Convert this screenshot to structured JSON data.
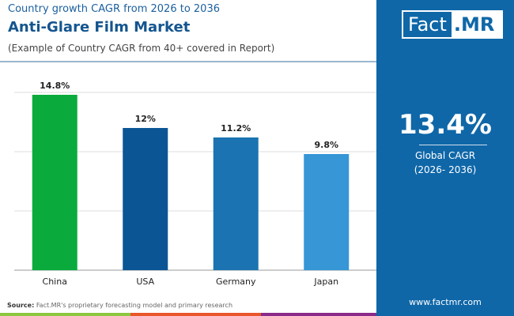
{
  "header": {
    "subtitle": "Country growth CAGR from 2026 to 2036",
    "title": "Anti-Glare Film Market",
    "note": "(Example of Country CAGR from 40+ covered in Report)"
  },
  "logo": {
    "part1": "Fact",
    "part2": ".MR"
  },
  "summary": {
    "value": "13.4%",
    "label": "Global CAGR",
    "period": "(2026- 2036)"
  },
  "footer": {
    "source_label": "Source:",
    "source_text": "Fact.MR's proprietary forecasting model and primary research",
    "url": "www.factmr.com"
  },
  "colors": {
    "panel": "#0f67a8",
    "strip": [
      "#8dc63f",
      "#e8562a",
      "#8b2a8b"
    ]
  },
  "chart_data": {
    "type": "bar",
    "categories": [
      "China",
      "USA",
      "Germany",
      "Japan"
    ],
    "values": [
      14.8,
      12,
      11.2,
      9.8
    ],
    "labels": [
      "14.8%",
      "12%",
      "11.2%",
      "9.8%"
    ],
    "colors": [
      "#0aab3c",
      "#0b5595",
      "#1b74b1",
      "#3696d6"
    ],
    "ylim": [
      0,
      15
    ],
    "grid": true
  }
}
